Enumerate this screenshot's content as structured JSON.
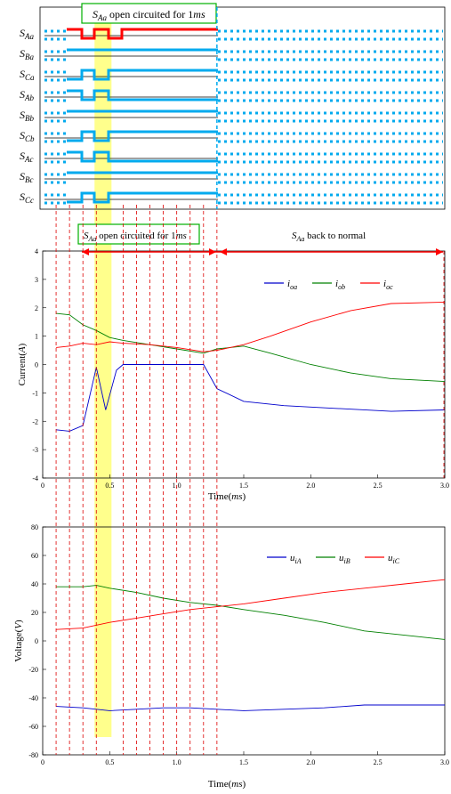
{
  "colors": {
    "red": "#ff0000",
    "blue": "#0000cc",
    "green": "#008000",
    "signal": "#00aaee",
    "highlight": "#ffff66",
    "annotation_box": "#00b000",
    "dash_red": "#dd0000"
  },
  "chart_data": [
    {
      "type": "line",
      "panel": "switch-states",
      "title": "S_Aa open circuited for 1ms",
      "signals": [
        {
          "name": "S_Aa",
          "main": "S",
          "sub": "Aa"
        },
        {
          "name": "S_Ba",
          "main": "S",
          "sub": "Ba"
        },
        {
          "name": "S_Ca",
          "main": "S",
          "sub": "Ca"
        },
        {
          "name": "S_Ab",
          "main": "S",
          "sub": "Ab"
        },
        {
          "name": "S_Bb",
          "main": "S",
          "sub": "Bb"
        },
        {
          "name": "S_Cb",
          "main": "S",
          "sub": "Cb"
        },
        {
          "name": "S_Ac",
          "main": "S",
          "sub": "Ac"
        },
        {
          "name": "S_Bc",
          "main": "S",
          "sub": "Bc"
        },
        {
          "name": "S_Cc",
          "main": "S",
          "sub": "Cc"
        }
      ]
    },
    {
      "type": "line",
      "panel": "current",
      "annotation_left": "S_Aa open circuited for 1ms",
      "annotation_right": "S_Aa back to normal",
      "xlabel": "Time(ms)",
      "ylabel": "Current(A)",
      "xlim": [
        0,
        3.0
      ],
      "ylim": [
        -4,
        4
      ],
      "xticks": [
        0,
        0.5,
        1.0,
        1.5,
        2.0,
        2.5,
        3.0
      ],
      "xtick_labels": [
        "0",
        "0.5",
        "1.0",
        "1.5",
        "2.0",
        "2.5",
        "3.0"
      ],
      "yticks": [
        -4,
        -3,
        -2,
        -1,
        0,
        1,
        2,
        3,
        4
      ],
      "ytick_labels": [
        "-4",
        "-3",
        "-2",
        "-1",
        "0",
        "1",
        "2",
        "3",
        "4"
      ],
      "legend": "top-right",
      "grid": false,
      "series": [
        {
          "name": "i_oa",
          "main": "i",
          "sub": "oa",
          "color": "#0000cc",
          "x": [
            0.1,
            0.2,
            0.3,
            0.4,
            0.47,
            0.55,
            0.6,
            0.8,
            1.0,
            1.2,
            1.3,
            1.5,
            1.8,
            2.2,
            2.6,
            3.0
          ],
          "y": [
            -2.3,
            -2.35,
            -2.15,
            -0.1,
            -1.6,
            -0.2,
            0,
            0,
            0,
            0,
            -0.85,
            -1.3,
            -1.45,
            -1.55,
            -1.65,
            -1.6
          ]
        },
        {
          "name": "i_ob",
          "main": "i",
          "sub": "ob",
          "color": "#008000",
          "x": [
            0.1,
            0.2,
            0.3,
            0.4,
            0.5,
            0.6,
            0.8,
            1.0,
            1.2,
            1.3,
            1.5,
            1.7,
            2.0,
            2.3,
            2.6,
            3.0
          ],
          "y": [
            1.8,
            1.75,
            1.4,
            1.2,
            0.95,
            0.85,
            0.7,
            0.55,
            0.4,
            0.55,
            0.65,
            0.4,
            0,
            -0.3,
            -0.5,
            -0.6
          ]
        },
        {
          "name": "i_oc",
          "main": "i",
          "sub": "oc",
          "color": "#ff0000",
          "x": [
            0.1,
            0.2,
            0.3,
            0.4,
            0.5,
            0.6,
            0.8,
            1.0,
            1.2,
            1.3,
            1.5,
            1.7,
            2.0,
            2.3,
            2.6,
            3.0
          ],
          "y": [
            0.6,
            0.65,
            0.75,
            0.7,
            0.8,
            0.75,
            0.7,
            0.6,
            0.45,
            0.5,
            0.7,
            1.0,
            1.5,
            1.9,
            2.15,
            2.2
          ]
        }
      ]
    },
    {
      "type": "line",
      "panel": "voltage",
      "xlabel": "Time(ms)",
      "ylabel": "Voltage(V)",
      "xlim": [
        0,
        3.0
      ],
      "ylim": [
        -80,
        80
      ],
      "xticks": [
        0,
        0.5,
        1.0,
        1.5,
        2.0,
        2.5,
        3.0
      ],
      "xtick_labels": [
        "0",
        "0.5",
        "1.0",
        "1.5",
        "2.0",
        "2.5",
        "3.0"
      ],
      "yticks": [
        -80,
        -60,
        -40,
        -20,
        0,
        20,
        40,
        60,
        80
      ],
      "ytick_labels": [
        "-80",
        "-60",
        "-40",
        "-20",
        "0",
        "20",
        "40",
        "60",
        "80"
      ],
      "legend": "top-right",
      "grid": false,
      "series": [
        {
          "name": "u_iA",
          "main": "u",
          "sub": "iA",
          "color": "#0000cc",
          "x": [
            0.1,
            0.3,
            0.5,
            0.7,
            0.9,
            1.1,
            1.3,
            1.5,
            1.8,
            2.1,
            2.4,
            2.7,
            3.0
          ],
          "y": [
            -46,
            -47,
            -49,
            -48,
            -47,
            -47,
            -48,
            -49,
            -48,
            -47,
            -45,
            -45,
            -45
          ]
        },
        {
          "name": "u_iB",
          "main": "u",
          "sub": "iB",
          "color": "#008000",
          "x": [
            0.1,
            0.3,
            0.4,
            0.5,
            0.7,
            0.9,
            1.1,
            1.3,
            1.5,
            1.8,
            2.1,
            2.4,
            2.7,
            3.0
          ],
          "y": [
            38,
            38,
            39,
            37,
            34,
            30,
            27,
            25,
            22,
            18,
            13,
            7,
            4,
            1
          ]
        },
        {
          "name": "u_iC",
          "main": "u",
          "sub": "iC",
          "color": "#ff0000",
          "x": [
            0.1,
            0.3,
            0.5,
            0.7,
            0.9,
            1.1,
            1.3,
            1.5,
            1.8,
            2.1,
            2.4,
            2.7,
            3.0
          ],
          "y": [
            8,
            9,
            13,
            16,
            19,
            22,
            24,
            26,
            30,
            34,
            37,
            40,
            43
          ]
        }
      ]
    }
  ]
}
